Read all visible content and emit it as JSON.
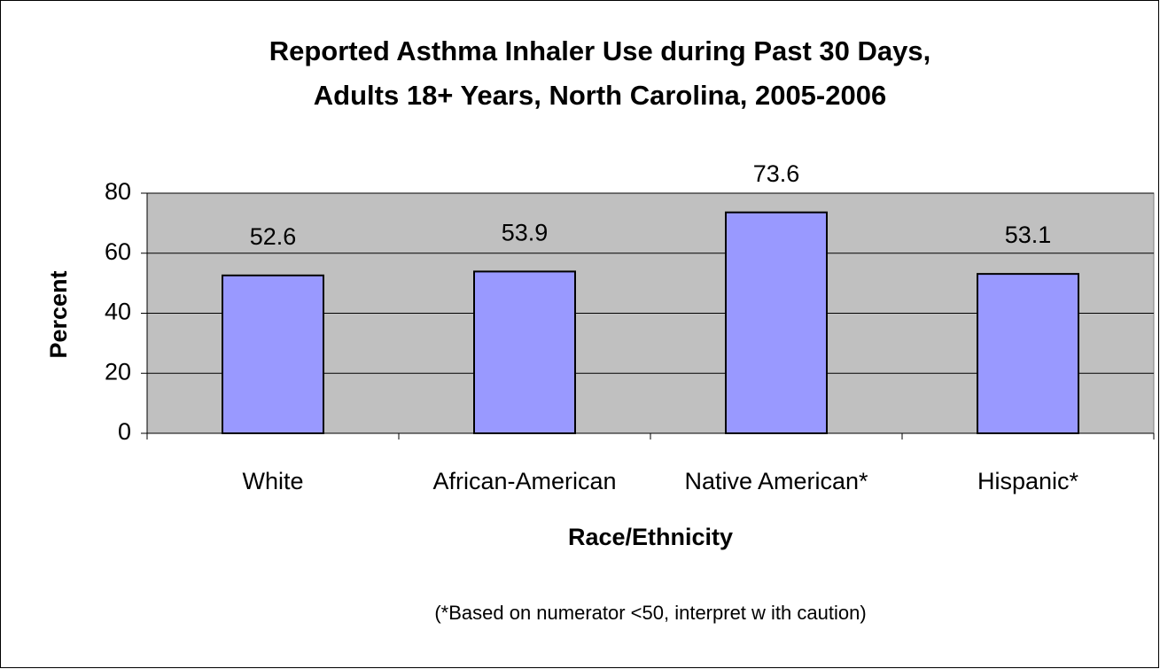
{
  "chart_data": {
    "type": "bar",
    "title": [
      "Reported Asthma Inhaler Use during Past 30 Days,",
      "Adults 18+ Years, North Carolina, 2005-2006"
    ],
    "x_label": "Race/Ethnicity",
    "y_label": "Percent",
    "note": "(*Based on numerator <50, interpret w ith caution)",
    "categories": [
      "White",
      "African-American",
      "Native American*",
      "Hispanic*"
    ],
    "values": [
      52.6,
      53.9,
      73.6,
      53.1
    ],
    "color": "#9999ff",
    "ylim": [
      0,
      80
    ],
    "yticks": [
      0,
      20,
      40,
      60,
      80
    ],
    "grid": true
  }
}
